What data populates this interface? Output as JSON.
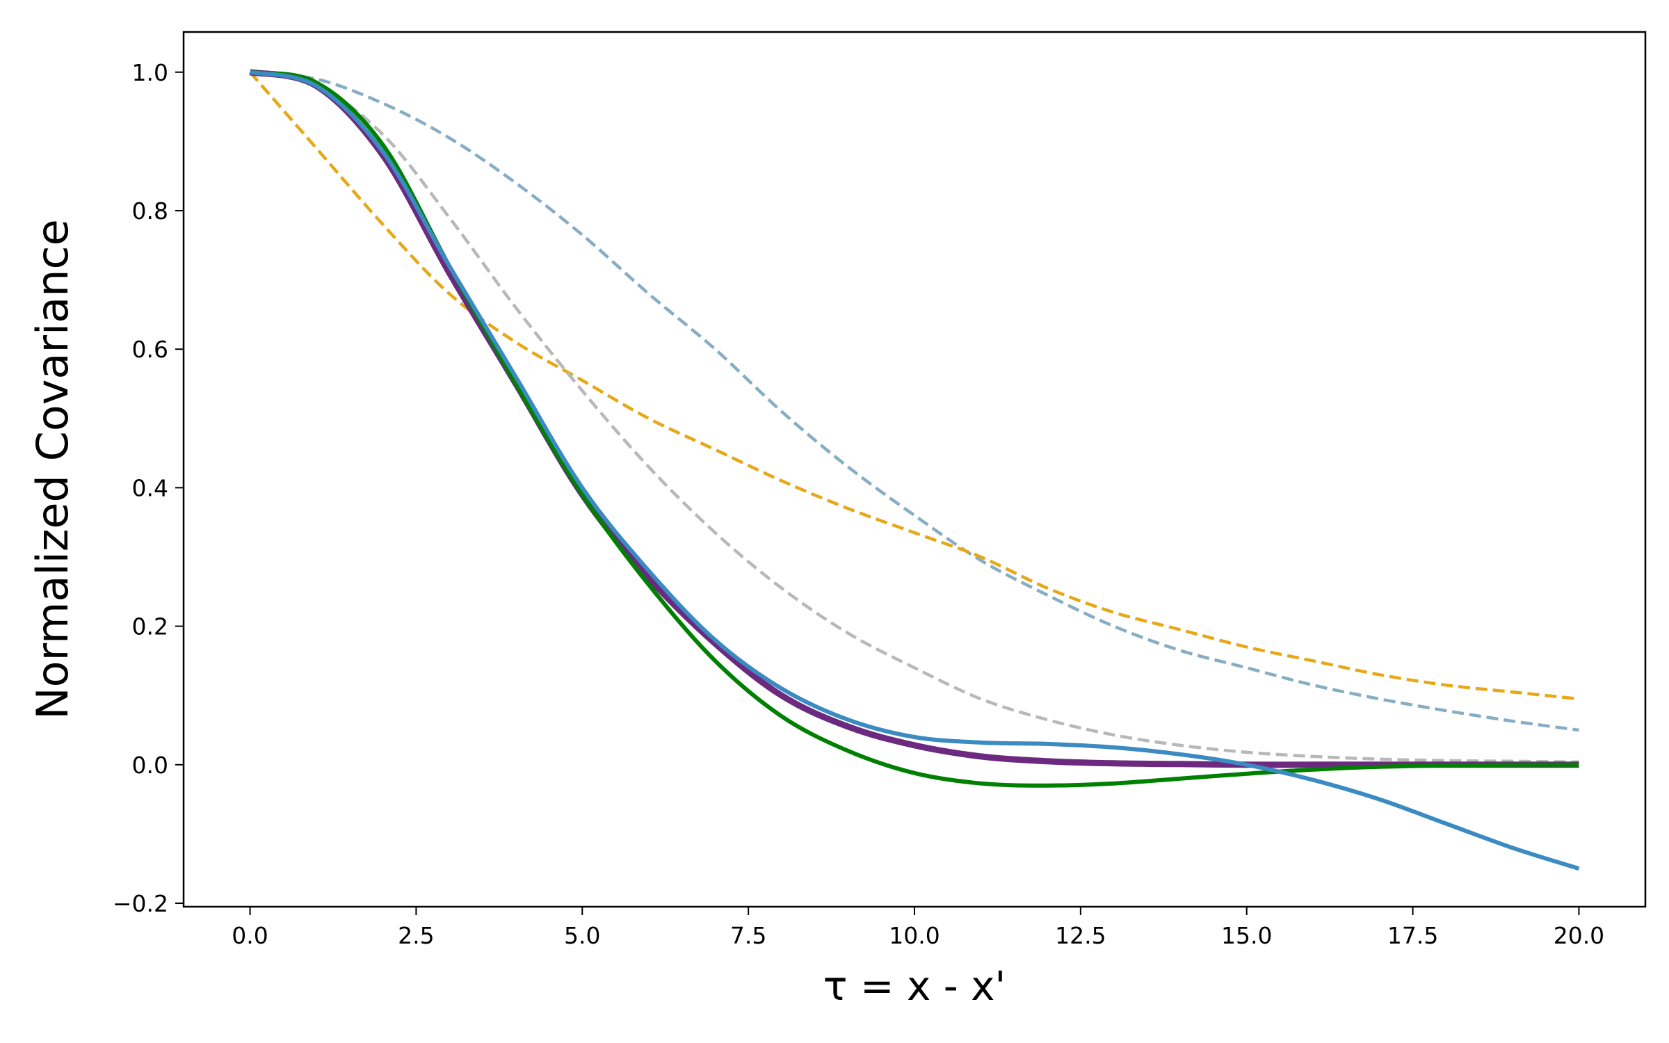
{
  "chart_data": {
    "type": "line",
    "title": "",
    "xlabel": "τ = x - x'",
    "ylabel": "Normalized Covariance",
    "xlim": [
      -1.0,
      21.0
    ],
    "ylim": [
      -0.205,
      1.058
    ],
    "xticks": [
      "0.0",
      "2.5",
      "5.0",
      "7.5",
      "10.0",
      "12.5",
      "15.0",
      "17.5",
      "20.0"
    ],
    "yticks": [
      "−0.2",
      "0.0",
      "0.2",
      "0.4",
      "0.6",
      "0.8",
      "1.0"
    ],
    "grid": false,
    "legend": "none",
    "series": [
      {
        "color": "#86adc4",
        "style": "dashed",
        "x": [
          0,
          1,
          2,
          3,
          4,
          5,
          6,
          7,
          8,
          9,
          10,
          11,
          12,
          13,
          14,
          15,
          16,
          17,
          18,
          19,
          20
        ],
        "y": [
          1.0,
          0.99,
          0.955,
          0.905,
          0.84,
          0.765,
          0.68,
          0.6,
          0.51,
          0.43,
          0.36,
          0.295,
          0.245,
          0.2,
          0.165,
          0.14,
          0.115,
          0.095,
          0.078,
          0.063,
          0.05
        ]
      },
      {
        "color": "#e6a817",
        "style": "dashed",
        "x": [
          0,
          1,
          2,
          3,
          4,
          5,
          6,
          7,
          8,
          9,
          10,
          11,
          12,
          13,
          14,
          15,
          16,
          17,
          18,
          19,
          20
        ],
        "y": [
          1.0,
          0.89,
          0.78,
          0.68,
          0.61,
          0.555,
          0.5,
          0.455,
          0.41,
          0.37,
          0.335,
          0.3,
          0.255,
          0.22,
          0.195,
          0.17,
          0.15,
          0.13,
          0.115,
          0.105,
          0.095
        ]
      },
      {
        "color": "#b8b8b8",
        "style": "dashed",
        "x": [
          0,
          1,
          2,
          3,
          4,
          5,
          6,
          7,
          8,
          9,
          10,
          11,
          12,
          13,
          14,
          15,
          16,
          17,
          18,
          19,
          20
        ],
        "y": [
          1.0,
          0.98,
          0.91,
          0.79,
          0.66,
          0.54,
          0.43,
          0.335,
          0.255,
          0.19,
          0.14,
          0.095,
          0.065,
          0.043,
          0.028,
          0.018,
          0.012,
          0.008,
          0.006,
          0.005,
          0.004
        ]
      },
      {
        "color": "#6b2a7f",
        "style": "solid",
        "x": [
          0,
          1,
          2,
          3,
          4,
          5,
          6,
          7,
          8,
          9,
          10,
          11,
          12,
          13,
          14,
          15,
          16,
          17,
          18,
          19,
          20
        ],
        "y": [
          1.0,
          0.98,
          0.88,
          0.71,
          0.55,
          0.39,
          0.27,
          0.175,
          0.1,
          0.055,
          0.028,
          0.012,
          0.005,
          0.002,
          0.001,
          0.0,
          0.0,
          0.0,
          0.0,
          0.0,
          0.0
        ]
      },
      {
        "color": "#008000",
        "style": "solid",
        "x": [
          0,
          1,
          2,
          3,
          4,
          5,
          6,
          7,
          8,
          9,
          10,
          11,
          12,
          13,
          14,
          15,
          16,
          17,
          18,
          19,
          20
        ],
        "y": [
          1.0,
          0.985,
          0.895,
          0.72,
          0.55,
          0.39,
          0.26,
          0.15,
          0.07,
          0.02,
          -0.012,
          -0.027,
          -0.03,
          -0.027,
          -0.02,
          -0.013,
          -0.007,
          -0.003,
          -0.001,
          0.0,
          0.0
        ]
      },
      {
        "color": "#3b8bc2",
        "style": "solid",
        "x": [
          0,
          1,
          2,
          3,
          4,
          5,
          6,
          7,
          8,
          9,
          10,
          11,
          12,
          13,
          14,
          15,
          16,
          17,
          18,
          19,
          20
        ],
        "y": [
          1.0,
          0.98,
          0.885,
          0.72,
          0.56,
          0.4,
          0.28,
          0.18,
          0.11,
          0.065,
          0.04,
          0.032,
          0.03,
          0.025,
          0.015,
          0.0,
          -0.022,
          -0.05,
          -0.085,
          -0.12,
          -0.15
        ]
      }
    ]
  }
}
